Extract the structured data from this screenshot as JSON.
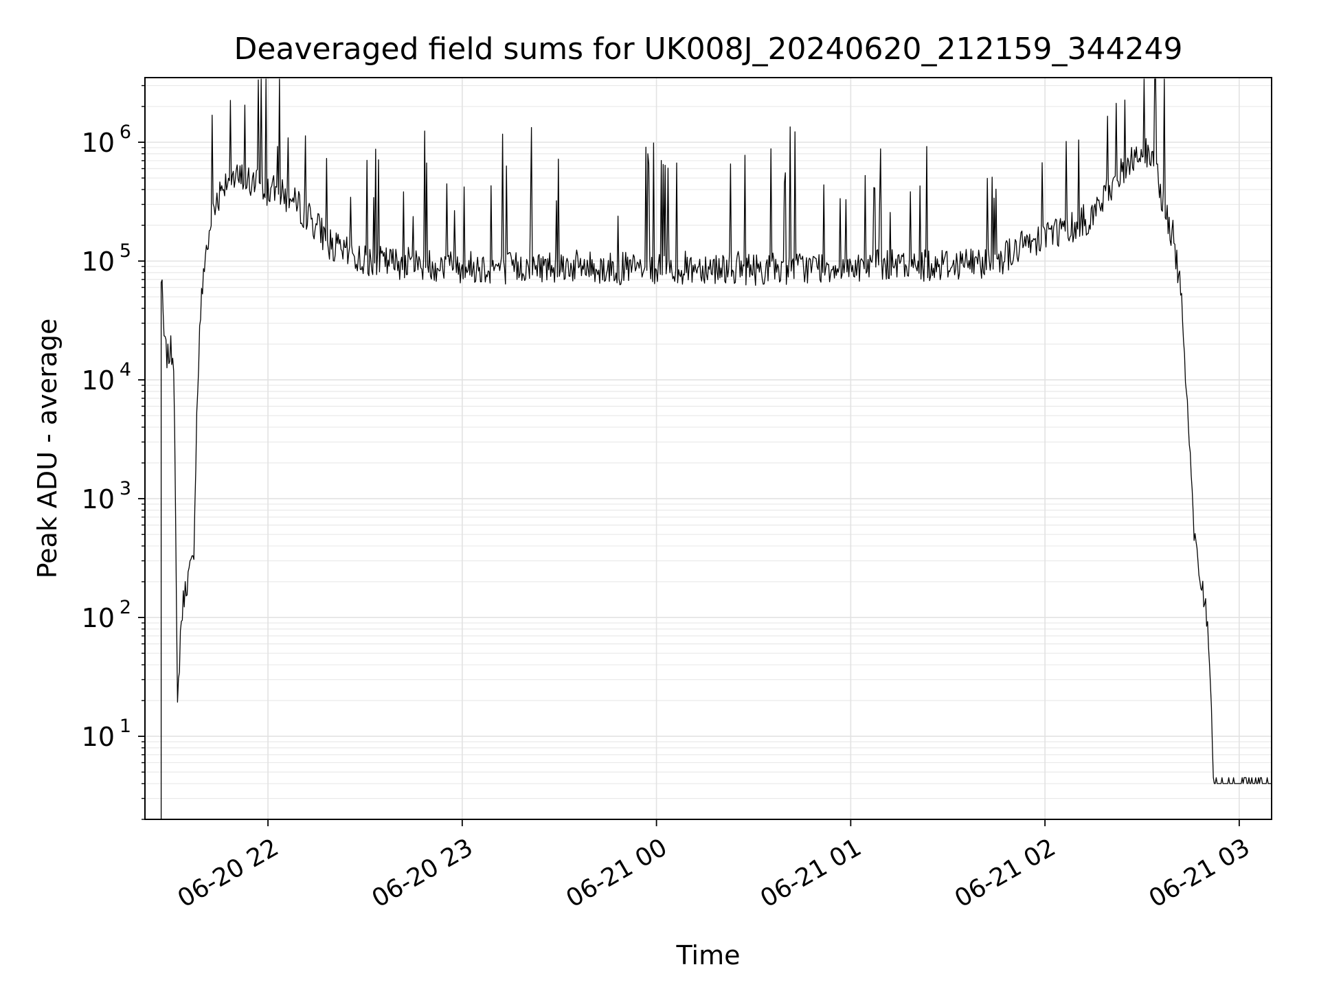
{
  "chart_data": {
    "type": "line",
    "title": "Deaveraged field sums for UK008J_20240620_212159_344249",
    "xlabel": "Time",
    "ylabel": "Peak ADU - average",
    "yscale": "log",
    "grid": true,
    "line_color": "#000000",
    "x_range": [
      "2024-06-20 21:22",
      "2024-06-21 03:10"
    ],
    "ylim": [
      2,
      3500000
    ],
    "x_ticks": [
      {
        "t": "2024-06-20 22:00",
        "label": "06-20 22"
      },
      {
        "t": "2024-06-20 23:00",
        "label": "06-20 23"
      },
      {
        "t": "2024-06-21 00:00",
        "label": "06-21 00"
      },
      {
        "t": "2024-06-21 01:00",
        "label": "06-21 01"
      },
      {
        "t": "2024-06-21 02:00",
        "label": "06-21 02"
      },
      {
        "t": "2024-06-21 03:00",
        "label": "06-21 03"
      }
    ],
    "y_ticks": [
      {
        "v": 10,
        "base": "10",
        "exp": "1"
      },
      {
        "v": 100,
        "base": "10",
        "exp": "2"
      },
      {
        "v": 1000,
        "base": "10",
        "exp": "3"
      },
      {
        "v": 10000,
        "base": "10",
        "exp": "4"
      },
      {
        "v": 100000,
        "base": "10",
        "exp": "5"
      },
      {
        "v": 1000000,
        "base": "10",
        "exp": "6"
      }
    ],
    "series": [
      {
        "x": [
          "2024-06-20 21:27",
          "2024-06-20 21:28",
          "2024-06-20 21:29",
          "2024-06-20 21:30",
          "2024-06-20 21:31",
          "2024-06-20 21:32",
          "2024-06-20 21:33",
          "2024-06-20 21:34",
          "2024-06-20 21:35",
          "2024-06-20 21:36",
          "2024-06-20 21:37",
          "2024-06-20 21:38",
          "2024-06-20 21:39",
          "2024-06-20 21:40",
          "2024-06-20 21:42",
          "2024-06-20 21:44",
          "2024-06-20 21:46",
          "2024-06-20 21:48",
          "2024-06-20 21:50",
          "2024-06-20 21:52",
          "2024-06-20 21:55",
          "2024-06-20 22:00",
          "2024-06-20 22:05",
          "2024-06-20 22:10",
          "2024-06-20 22:15",
          "2024-06-20 22:20",
          "2024-06-20 22:30",
          "2024-06-20 22:45",
          "2024-06-20 23:00",
          "2024-06-20 23:15",
          "2024-06-20 23:30",
          "2024-06-20 23:45",
          "2024-06-21 00:00",
          "2024-06-21 00:15",
          "2024-06-21 00:30",
          "2024-06-21 00:45",
          "2024-06-21 01:00",
          "2024-06-21 01:15",
          "2024-06-21 01:30",
          "2024-06-21 01:45",
          "2024-06-21 02:00",
          "2024-06-21 02:10",
          "2024-06-21 02:15",
          "2024-06-21 02:20",
          "2024-06-21 02:25",
          "2024-06-21 02:30",
          "2024-06-21 02:35",
          "2024-06-21 02:38",
          "2024-06-21 02:40",
          "2024-06-21 02:41",
          "2024-06-21 02:42",
          "2024-06-21 02:43",
          "2024-06-21 02:44",
          "2024-06-21 02:45",
          "2024-06-21 02:46",
          "2024-06-21 02:47",
          "2024-06-21 02:48",
          "2024-06-21 02:49",
          "2024-06-21 02:50",
          "2024-06-21 02:51",
          "2024-06-21 02:52",
          "2024-06-21 02:53",
          "2024-06-21 02:55",
          "2024-06-21 03:00",
          "2024-06-21 03:05",
          "2024-06-21 03:10"
        ],
        "y": [
          75000,
          20000,
          15000,
          18000,
          15000,
          15,
          80,
          150,
          200,
          250,
          300,
          5000,
          30000,
          80000,
          180000,
          320000,
          450000,
          520000,
          480000,
          500000,
          450000,
          400000,
          350000,
          280000,
          200000,
          130000,
          100000,
          95000,
          90000,
          88000,
          92000,
          87000,
          85000,
          90000,
          86000,
          88000,
          92000,
          90000,
          95000,
          100000,
          170000,
          200000,
          250000,
          400000,
          600000,
          900000,
          500000,
          200000,
          150000,
          80000,
          50000,
          20000,
          5000,
          2000,
          500,
          300,
          200,
          150,
          100,
          40,
          4,
          4,
          4,
          4,
          4,
          4
        ]
      }
    ]
  }
}
